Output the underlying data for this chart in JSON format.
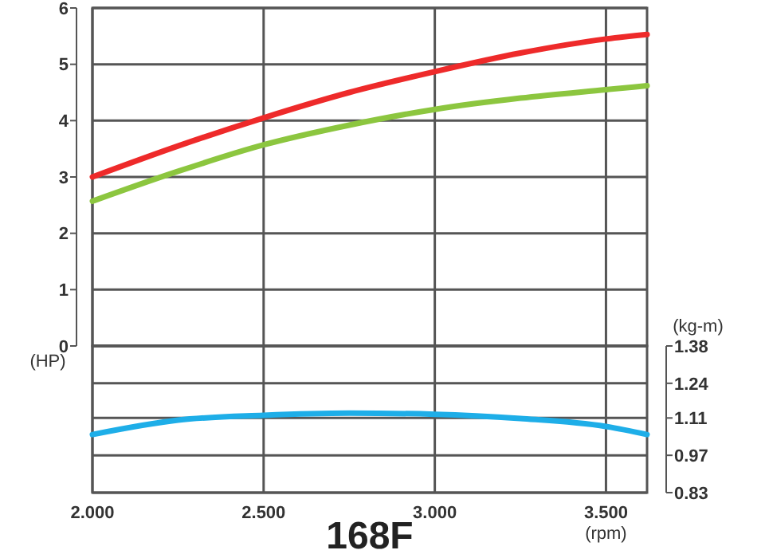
{
  "chart_data": [
    {
      "type": "line",
      "x": [
        2,
        2.25,
        2.5,
        2.75,
        3,
        3.25,
        3.5,
        3.62
      ],
      "xlim": [
        2,
        3.62
      ],
      "xticks": [
        {
          "value": 2,
          "label": null
        },
        {
          "value": 2.5,
          "label": null
        },
        {
          "value": 3,
          "label": null
        },
        {
          "value": 3.5,
          "label": null
        }
      ],
      "ylim": [
        0,
        6
      ],
      "yticks": [
        0,
        1,
        2,
        3,
        4,
        5,
        6
      ],
      "ylabel": "(HP)",
      "tick_labels": "y",
      "grid": true,
      "marker": "none",
      "line_style": "solid",
      "series": [
        {
          "color": "#ee2a2a",
          "values": [
            3.0,
            3.55,
            4.05,
            4.5,
            4.87,
            5.2,
            5.45,
            5.53
          ]
        },
        {
          "color": "#8cc63f",
          "values": [
            2.57,
            3.1,
            3.57,
            3.92,
            4.2,
            4.4,
            4.55,
            4.62
          ]
        }
      ]
    },
    {
      "type": "line",
      "title": "168F",
      "x": [
        2,
        2.25,
        2.5,
        2.75,
        3,
        3.25,
        3.5,
        3.62
      ],
      "xlim": [
        2,
        3.62
      ],
      "xticks": [
        {
          "value": 2,
          "label": "2.000"
        },
        {
          "value": 2.5,
          "label": "2.500"
        },
        {
          "value": 3,
          "label": "3.000"
        },
        {
          "value": 3.5,
          "label": "3.500"
        }
      ],
      "xlabel": "(rpm)",
      "y2lim": [
        0.83,
        1.38
      ],
      "y2ticks": [
        0.83,
        0.97,
        1.11,
        1.24,
        1.38
      ],
      "y2label": "(kg-m)",
      "grid": true,
      "marker": "none",
      "line_style": "solid",
      "series": [
        {
          "color": "#1eaee8",
          "axis": "y2",
          "values": [
            1.048,
            1.102,
            1.12,
            1.128,
            1.124,
            1.108,
            1.078,
            1.048
          ]
        }
      ]
    }
  ]
}
